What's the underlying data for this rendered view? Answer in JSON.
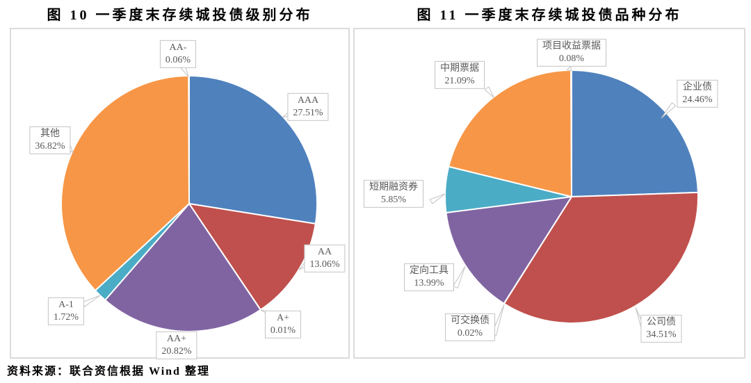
{
  "figures": [
    {
      "title": "图 10  一季度末存续城投债级别分布"
    },
    {
      "title": "图 11  一季度末存续城投债品种分布"
    }
  ],
  "footer": {
    "source_label": "资料来源：联合资信根据 Wind 整理"
  },
  "chart_data": [
    {
      "type": "pie",
      "title": "一季度末存续城投债级别分布",
      "legend": "none",
      "label_style": "callout",
      "start_angle_deg": 0,
      "direction": "clockwise",
      "slices": [
        {
          "label": "AAA",
          "value": 27.51,
          "display": "27.51%",
          "color": "#4F81BD"
        },
        {
          "label": "AA",
          "value": 13.06,
          "display": "13.06%",
          "color": "#C0504D"
        },
        {
          "label": "A+",
          "value": 0.01,
          "display": "0.01%",
          "color": "#9BBB59"
        },
        {
          "label": "AA+",
          "value": 20.82,
          "display": "20.82%",
          "color": "#8064A2"
        },
        {
          "label": "A-1",
          "value": 1.72,
          "display": "1.72%",
          "color": "#4BACC6"
        },
        {
          "label": "其他",
          "value": 36.82,
          "display": "36.82%",
          "color": "#F79646"
        },
        {
          "label": "AA-",
          "value": 0.06,
          "display": "0.06%",
          "color": "#2C4D75"
        }
      ]
    },
    {
      "type": "pie",
      "title": "一季度末存续城投债品种分布",
      "legend": "none",
      "label_style": "callout",
      "start_angle_deg": 0,
      "direction": "clockwise",
      "slices": [
        {
          "label": "企业债",
          "value": 24.46,
          "display": "24.46%",
          "color": "#4F81BD"
        },
        {
          "label": "公司债",
          "value": 34.51,
          "display": "34.51%",
          "color": "#C0504D"
        },
        {
          "label": "可交换债",
          "value": 0.02,
          "display": "0.02%",
          "color": "#9BBB59"
        },
        {
          "label": "定向工具",
          "value": 13.99,
          "display": "13.99%",
          "color": "#8064A2"
        },
        {
          "label": "短期融资券",
          "value": 5.85,
          "display": "5.85%",
          "color": "#4BACC6"
        },
        {
          "label": "中期票据",
          "value": 21.09,
          "display": "21.09%",
          "color": "#F79646"
        },
        {
          "label": "项目收益票据",
          "value": 0.08,
          "display": "0.08%",
          "color": "#2C4D75"
        }
      ]
    }
  ]
}
